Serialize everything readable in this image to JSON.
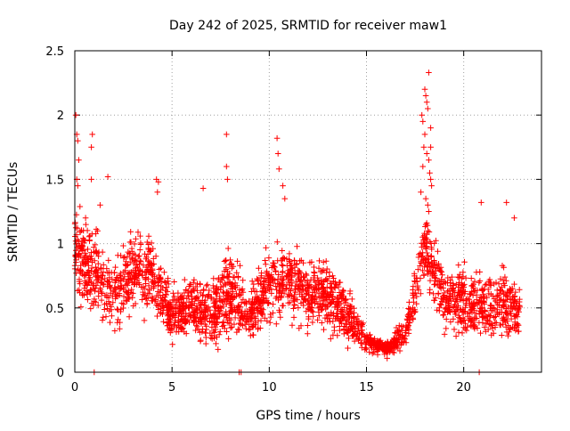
{
  "chart_data": {
    "type": "scatter",
    "title": "Day 242 of 2025, SRMTID for receiver maw1",
    "xlabel": "GPS time / hours",
    "ylabel": "SRMTID / TECUs",
    "xlim": [
      0,
      24
    ],
    "ylim": [
      0,
      2.5
    ],
    "xticks": [
      0,
      5,
      10,
      15,
      20
    ],
    "yticks": [
      0,
      0.5,
      1,
      1.5,
      2,
      2.5
    ],
    "xtick_labels": [
      "0",
      "5",
      "10",
      "15",
      "20"
    ],
    "ytick_labels": [
      "0",
      "0.5",
      "1",
      "1.5",
      "2",
      "2.5"
    ],
    "grid": true,
    "marker": "+",
    "color": "#ff0000",
    "series": [
      {
        "name": "maw1",
        "envelope": [
          {
            "t": 0.0,
            "base": 0.95,
            "spread": 0.45
          },
          {
            "t": 1.0,
            "base": 0.75,
            "spread": 0.45
          },
          {
            "t": 2.0,
            "base": 0.55,
            "spread": 0.4
          },
          {
            "t": 3.0,
            "base": 0.8,
            "spread": 0.4
          },
          {
            "t": 4.0,
            "base": 0.75,
            "spread": 0.4
          },
          {
            "t": 5.0,
            "base": 0.45,
            "spread": 0.3
          },
          {
            "t": 6.0,
            "base": 0.5,
            "spread": 0.3
          },
          {
            "t": 7.0,
            "base": 0.45,
            "spread": 0.35
          },
          {
            "t": 8.0,
            "base": 0.6,
            "spread": 0.45
          },
          {
            "t": 9.0,
            "base": 0.45,
            "spread": 0.3
          },
          {
            "t": 10.0,
            "base": 0.7,
            "spread": 0.4
          },
          {
            "t": 11.0,
            "base": 0.7,
            "spread": 0.4
          },
          {
            "t": 12.0,
            "base": 0.6,
            "spread": 0.35
          },
          {
            "t": 13.0,
            "base": 0.6,
            "spread": 0.35
          },
          {
            "t": 14.0,
            "base": 0.45,
            "spread": 0.3
          },
          {
            "t": 15.0,
            "base": 0.25,
            "spread": 0.1
          },
          {
            "t": 16.0,
            "base": 0.18,
            "spread": 0.08
          },
          {
            "t": 17.0,
            "base": 0.3,
            "spread": 0.15
          },
          {
            "t": 18.0,
            "base": 1.0,
            "spread": 0.4
          },
          {
            "t": 19.0,
            "base": 0.55,
            "spread": 0.35
          },
          {
            "t": 20.0,
            "base": 0.55,
            "spread": 0.35
          },
          {
            "t": 21.0,
            "base": 0.5,
            "spread": 0.3
          },
          {
            "t": 22.0,
            "base": 0.55,
            "spread": 0.35
          },
          {
            "t": 22.9,
            "base": 0.45,
            "spread": 0.3
          }
        ],
        "highlights": [
          {
            "x": 0.05,
            "y": 2.0
          },
          {
            "x": 0.1,
            "y": 1.85
          },
          {
            "x": 0.15,
            "y": 1.8
          },
          {
            "x": 0.1,
            "y": 1.5
          },
          {
            "x": 0.15,
            "y": 1.45
          },
          {
            "x": 0.2,
            "y": 1.65
          },
          {
            "x": 0.05,
            "y": 1.02
          },
          {
            "x": 0.9,
            "y": 1.85
          },
          {
            "x": 0.85,
            "y": 1.75
          },
          {
            "x": 1.7,
            "y": 1.52
          },
          {
            "x": 0.85,
            "y": 1.5
          },
          {
            "x": 1.3,
            "y": 1.3
          },
          {
            "x": 4.2,
            "y": 1.5
          },
          {
            "x": 4.3,
            "y": 1.48
          },
          {
            "x": 4.25,
            "y": 1.4
          },
          {
            "x": 6.6,
            "y": 1.43
          },
          {
            "x": 7.8,
            "y": 1.85
          },
          {
            "x": 7.8,
            "y": 1.6
          },
          {
            "x": 7.85,
            "y": 1.5
          },
          {
            "x": 10.4,
            "y": 1.82
          },
          {
            "x": 10.45,
            "y": 1.7
          },
          {
            "x": 10.5,
            "y": 1.58
          },
          {
            "x": 10.7,
            "y": 1.45
          },
          {
            "x": 10.8,
            "y": 1.35
          },
          {
            "x": 17.85,
            "y": 2.0
          },
          {
            "x": 17.9,
            "y": 1.95
          },
          {
            "x": 18.0,
            "y": 2.2
          },
          {
            "x": 18.05,
            "y": 2.15
          },
          {
            "x": 18.1,
            "y": 2.1
          },
          {
            "x": 18.15,
            "y": 2.05
          },
          {
            "x": 18.2,
            "y": 2.33
          },
          {
            "x": 18.0,
            "y": 1.85
          },
          {
            "x": 17.95,
            "y": 1.75
          },
          {
            "x": 18.1,
            "y": 1.7
          },
          {
            "x": 18.2,
            "y": 1.65
          },
          {
            "x": 18.25,
            "y": 1.55
          },
          {
            "x": 18.3,
            "y": 1.5
          },
          {
            "x": 18.35,
            "y": 1.45
          },
          {
            "x": 18.05,
            "y": 1.35
          },
          {
            "x": 18.15,
            "y": 1.3
          },
          {
            "x": 18.2,
            "y": 1.25
          },
          {
            "x": 17.8,
            "y": 1.4
          },
          {
            "x": 17.9,
            "y": 1.6
          },
          {
            "x": 18.3,
            "y": 1.75
          },
          {
            "x": 18.3,
            "y": 1.9
          },
          {
            "x": 20.9,
            "y": 1.32
          },
          {
            "x": 22.2,
            "y": 1.32
          },
          {
            "x": 22.6,
            "y": 1.2
          },
          {
            "x": 1.0,
            "y": 0.0
          },
          {
            "x": 8.45,
            "y": 0.0
          },
          {
            "x": 8.55,
            "y": 0.0
          },
          {
            "x": 20.8,
            "y": 0.0
          }
        ]
      }
    ]
  }
}
